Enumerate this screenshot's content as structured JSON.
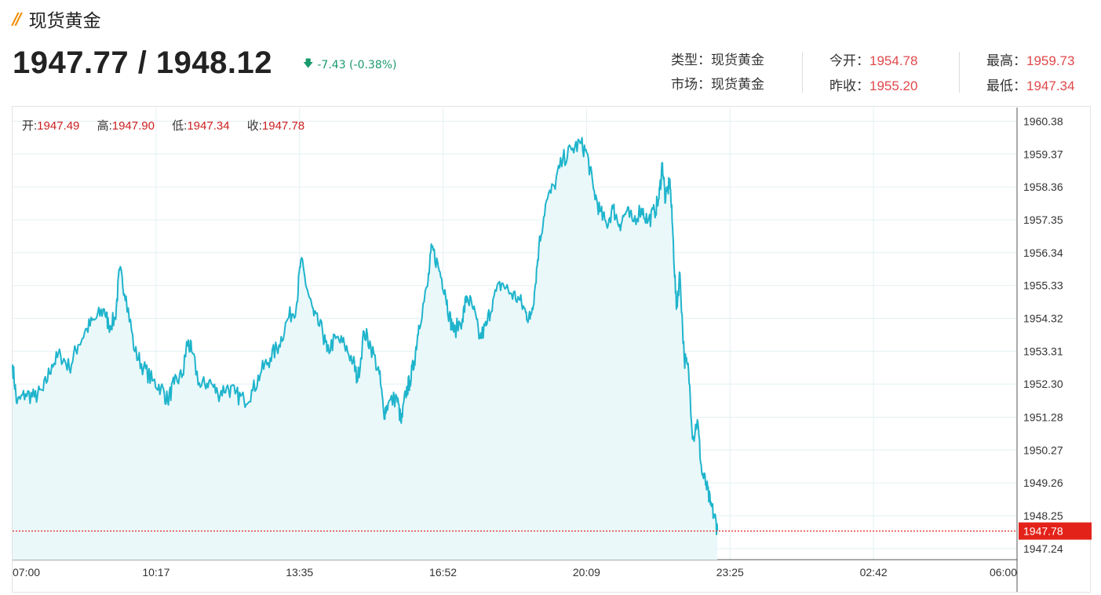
{
  "header": {
    "title": "现货黄金",
    "price": "1947.77 / 1948.12",
    "change": "-7.43 (-0.38%)",
    "change_color": "#1a9a6c",
    "arrow_icon": "down-arrow-icon"
  },
  "info": {
    "type_label": "类型：",
    "type_value": "现货黄金",
    "market_label": "市场：",
    "market_value": "现货黄金",
    "open_label": "今开：",
    "open_value": "1954.78",
    "prev_close_label": "昨收：",
    "prev_close_value": "1955.20",
    "high_label": "最高：",
    "high_value": "1959.73",
    "low_label": "最低：",
    "low_value": "1947.34"
  },
  "ohlc": {
    "open_label": "开:",
    "open_value": "1947.49",
    "high_label": "高:",
    "high_value": "1947.90",
    "low_label": "低:",
    "low_value": "1947.34",
    "close_label": "收:",
    "close_value": "1947.78"
  },
  "colors": {
    "line": "#1fb4cc",
    "area": "#eaf8fa",
    "grid": "#e4f0f3",
    "current_price_bg": "#e3231a",
    "current_line": "#e3231a"
  },
  "chart_data": {
    "type": "area",
    "title": "",
    "xlabel": "",
    "ylabel": "",
    "x_ticks": [
      "07:00",
      "10:17",
      "13:35",
      "16:52",
      "20:09",
      "23:25",
      "02:42",
      "06:00"
    ],
    "y_ticks": [
      "1960.38",
      "1959.37",
      "1958.36",
      "1957.35",
      "1956.34",
      "1955.33",
      "1954.32",
      "1953.31",
      "1952.30",
      "1951.28",
      "1950.27",
      "1949.26",
      "1948.25",
      "1947.24"
    ],
    "ylim": [
      1946.9,
      1960.8
    ],
    "x_unit": "hours since 07:00",
    "xlim": [
      0,
      23
    ],
    "current_price": "1947.78",
    "series": [
      {
        "values": [
          [
            0.0,
            1952.9
          ],
          [
            0.1,
            1951.7
          ],
          [
            0.3,
            1952.0
          ],
          [
            0.5,
            1951.9
          ],
          [
            0.7,
            1952.1
          ],
          [
            0.9,
            1952.9
          ],
          [
            1.1,
            1953.2
          ],
          [
            1.3,
            1952.8
          ],
          [
            1.5,
            1953.5
          ],
          [
            1.7,
            1954.0
          ],
          [
            1.9,
            1954.3
          ],
          [
            2.1,
            1954.6
          ],
          [
            2.2,
            1954.1
          ],
          [
            2.35,
            1954.3
          ],
          [
            2.45,
            1955.8
          ],
          [
            2.6,
            1955.0
          ],
          [
            2.8,
            1953.3
          ],
          [
            3.0,
            1952.8
          ],
          [
            3.2,
            1952.4
          ],
          [
            3.4,
            1952.2
          ],
          [
            3.55,
            1951.8
          ],
          [
            3.7,
            1952.3
          ],
          [
            3.9,
            1952.6
          ],
          [
            4.0,
            1953.6
          ],
          [
            4.1,
            1953.3
          ],
          [
            4.3,
            1952.2
          ],
          [
            4.5,
            1952.4
          ],
          [
            4.7,
            1952.0
          ],
          [
            4.9,
            1952.2
          ],
          [
            5.1,
            1952.0
          ],
          [
            5.3,
            1951.8
          ],
          [
            5.5,
            1952.1
          ],
          [
            5.7,
            1952.7
          ],
          [
            5.9,
            1953.1
          ],
          [
            6.1,
            1953.5
          ],
          [
            6.3,
            1954.3
          ],
          [
            6.5,
            1954.7
          ],
          [
            6.6,
            1956.1
          ],
          [
            6.75,
            1955.2
          ],
          [
            6.9,
            1954.4
          ],
          [
            7.1,
            1953.9
          ],
          [
            7.2,
            1953.3
          ],
          [
            7.4,
            1953.7
          ],
          [
            7.6,
            1953.5
          ],
          [
            7.8,
            1953.0
          ],
          [
            7.9,
            1952.4
          ],
          [
            8.05,
            1953.9
          ],
          [
            8.2,
            1953.5
          ],
          [
            8.4,
            1952.6
          ],
          [
            8.5,
            1951.4
          ],
          [
            8.6,
            1951.7
          ],
          [
            8.8,
            1951.9
          ],
          [
            8.9,
            1951.1
          ],
          [
            9.0,
            1952.0
          ],
          [
            9.1,
            1952.4
          ],
          [
            9.2,
            1953.0
          ],
          [
            9.3,
            1954.1
          ],
          [
            9.5,
            1955.3
          ],
          [
            9.6,
            1956.5
          ],
          [
            9.75,
            1955.9
          ],
          [
            9.9,
            1955.2
          ],
          [
            10.0,
            1954.4
          ],
          [
            10.1,
            1953.9
          ],
          [
            10.3,
            1954.3
          ],
          [
            10.4,
            1955.0
          ],
          [
            10.55,
            1954.6
          ],
          [
            10.7,
            1953.7
          ],
          [
            10.85,
            1954.1
          ],
          [
            11.0,
            1954.9
          ],
          [
            11.2,
            1955.4
          ],
          [
            11.4,
            1955.1
          ],
          [
            11.6,
            1954.9
          ],
          [
            11.75,
            1954.5
          ],
          [
            11.85,
            1954.3
          ],
          [
            11.95,
            1955.1
          ],
          [
            12.05,
            1956.5
          ],
          [
            12.2,
            1957.8
          ],
          [
            12.4,
            1958.4
          ],
          [
            12.6,
            1959.2
          ],
          [
            12.8,
            1959.5
          ],
          [
            13.0,
            1959.7
          ],
          [
            13.15,
            1959.4
          ],
          [
            13.3,
            1958.3
          ],
          [
            13.45,
            1957.6
          ],
          [
            13.6,
            1957.2
          ],
          [
            13.75,
            1957.7
          ],
          [
            13.9,
            1957.2
          ],
          [
            14.05,
            1957.6
          ],
          [
            14.2,
            1957.3
          ],
          [
            14.4,
            1957.7
          ],
          [
            14.55,
            1957.3
          ],
          [
            14.7,
            1957.6
          ],
          [
            14.8,
            1958.0
          ],
          [
            14.88,
            1959.1
          ],
          [
            14.95,
            1957.9
          ],
          [
            15.05,
            1958.6
          ],
          [
            15.12,
            1956.9
          ],
          [
            15.2,
            1954.6
          ],
          [
            15.28,
            1955.7
          ],
          [
            15.38,
            1953.1
          ],
          [
            15.48,
            1952.7
          ],
          [
            15.58,
            1950.6
          ],
          [
            15.68,
            1951.2
          ],
          [
            15.78,
            1949.6
          ],
          [
            15.88,
            1949.2
          ],
          [
            15.98,
            1948.6
          ],
          [
            16.08,
            1948.2
          ],
          [
            16.14,
            1947.8
          ]
        ]
      }
    ]
  }
}
